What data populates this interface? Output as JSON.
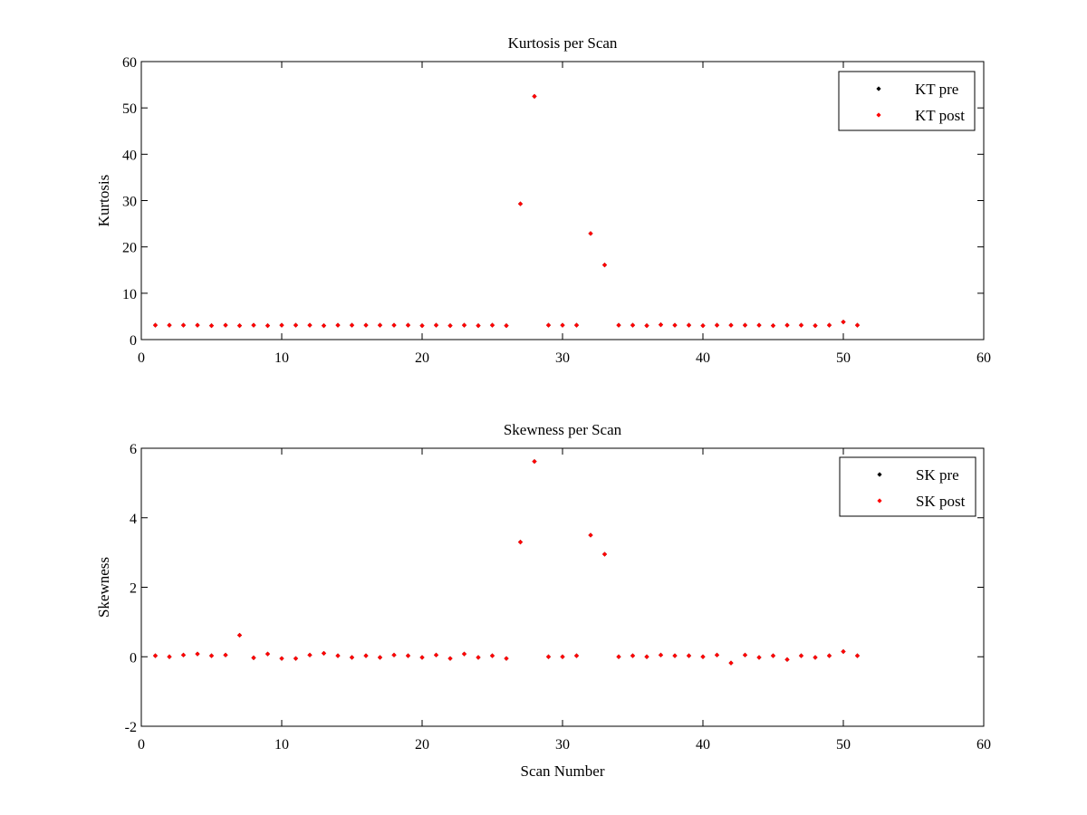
{
  "colors": {
    "pre": "#000000",
    "post": "#ff0000",
    "axes": "#000000",
    "background": "#ffffff"
  },
  "chart_data": [
    {
      "type": "scatter",
      "title": "Kurtosis per Scan",
      "xlabel": "",
      "ylabel": "Kurtosis",
      "xlim": [
        0,
        60
      ],
      "ylim": [
        0,
        60
      ],
      "xticks": [
        0,
        10,
        20,
        30,
        40,
        50,
        60
      ],
      "yticks": [
        0,
        10,
        20,
        30,
        40,
        50,
        60
      ],
      "grid": false,
      "legend_position": "top-right",
      "series": [
        {
          "name": "KT pre",
          "color": "#000000",
          "x": [
            1,
            2,
            3,
            4,
            5,
            6,
            7,
            8,
            9,
            10,
            11,
            12,
            13,
            14,
            15,
            16,
            17,
            18,
            19,
            20,
            21,
            22,
            23,
            24,
            25,
            26,
            27,
            28,
            29,
            30,
            31,
            32,
            33,
            34,
            35,
            36,
            37,
            38,
            39,
            40,
            41,
            42,
            43,
            44,
            45,
            46,
            47,
            48,
            49,
            50,
            51
          ],
          "y": [
            3.1,
            3.1,
            3.1,
            3.1,
            3.0,
            3.1,
            3.0,
            3.1,
            3.0,
            3.1,
            3.1,
            3.1,
            3.0,
            3.1,
            3.1,
            3.1,
            3.1,
            3.1,
            3.1,
            3.0,
            3.1,
            3.0,
            3.1,
            3.0,
            3.1,
            3.0,
            29.3,
            52.5,
            3.1,
            3.1,
            3.1,
            22.9,
            16.1,
            3.1,
            3.1,
            3.0,
            3.2,
            3.1,
            3.1,
            3.0,
            3.1,
            3.1,
            3.1,
            3.1,
            3.0,
            3.1,
            3.1,
            3.0,
            3.1,
            3.8,
            3.1
          ]
        },
        {
          "name": "KT post",
          "color": "#ff0000",
          "x": [
            1,
            2,
            3,
            4,
            5,
            6,
            7,
            8,
            9,
            10,
            11,
            12,
            13,
            14,
            15,
            16,
            17,
            18,
            19,
            20,
            21,
            22,
            23,
            24,
            25,
            26,
            27,
            28,
            29,
            30,
            31,
            32,
            33,
            34,
            35,
            36,
            37,
            38,
            39,
            40,
            41,
            42,
            43,
            44,
            45,
            46,
            47,
            48,
            49,
            50,
            51
          ],
          "y": [
            3.1,
            3.1,
            3.1,
            3.1,
            3.0,
            3.1,
            3.0,
            3.1,
            3.0,
            3.1,
            3.1,
            3.1,
            3.0,
            3.1,
            3.1,
            3.1,
            3.1,
            3.1,
            3.1,
            3.0,
            3.1,
            3.0,
            3.1,
            3.0,
            3.1,
            3.0,
            29.3,
            52.5,
            3.1,
            3.1,
            3.1,
            22.9,
            16.1,
            3.1,
            3.1,
            3.0,
            3.2,
            3.1,
            3.1,
            3.0,
            3.1,
            3.1,
            3.1,
            3.1,
            3.0,
            3.1,
            3.1,
            3.0,
            3.1,
            3.8,
            3.1
          ]
        }
      ]
    },
    {
      "type": "scatter",
      "title": "Skewness per Scan",
      "xlabel": "Scan Number",
      "ylabel": "Skewness",
      "xlim": [
        0,
        60
      ],
      "ylim": [
        -2,
        6
      ],
      "xticks": [
        0,
        10,
        20,
        30,
        40,
        50,
        60
      ],
      "yticks": [
        -2,
        0,
        2,
        4,
        6
      ],
      "grid": false,
      "legend_position": "top-right",
      "series": [
        {
          "name": "SK pre",
          "color": "#000000",
          "x": [
            1,
            2,
            3,
            4,
            5,
            6,
            7,
            8,
            9,
            10,
            11,
            12,
            13,
            14,
            15,
            16,
            17,
            18,
            19,
            20,
            21,
            22,
            23,
            24,
            25,
            26,
            27,
            28,
            29,
            30,
            31,
            32,
            33,
            34,
            35,
            36,
            37,
            38,
            39,
            40,
            41,
            42,
            43,
            44,
            45,
            46,
            47,
            48,
            49,
            50,
            51
          ],
          "y": [
            0.03,
            0.0,
            0.05,
            0.08,
            0.03,
            0.05,
            0.62,
            -0.03,
            0.08,
            -0.05,
            -0.05,
            0.05,
            0.1,
            0.03,
            -0.02,
            0.03,
            -0.02,
            0.05,
            0.03,
            -0.02,
            0.05,
            -0.05,
            0.08,
            -0.02,
            0.03,
            -0.05,
            3.3,
            5.62,
            0.0,
            0.0,
            0.03,
            3.5,
            2.95,
            0.0,
            0.03,
            0.0,
            0.05,
            0.03,
            0.03,
            0.0,
            0.05,
            -0.18,
            0.05,
            -0.02,
            0.03,
            -0.08,
            0.03,
            -0.02,
            0.03,
            0.15,
            0.03
          ]
        },
        {
          "name": "SK post",
          "color": "#ff0000",
          "x": [
            1,
            2,
            3,
            4,
            5,
            6,
            7,
            8,
            9,
            10,
            11,
            12,
            13,
            14,
            15,
            16,
            17,
            18,
            19,
            20,
            21,
            22,
            23,
            24,
            25,
            26,
            27,
            28,
            29,
            30,
            31,
            32,
            33,
            34,
            35,
            36,
            37,
            38,
            39,
            40,
            41,
            42,
            43,
            44,
            45,
            46,
            47,
            48,
            49,
            50,
            51
          ],
          "y": [
            0.03,
            0.0,
            0.05,
            0.08,
            0.03,
            0.05,
            0.62,
            -0.03,
            0.08,
            -0.05,
            -0.05,
            0.05,
            0.1,
            0.03,
            -0.02,
            0.03,
            -0.02,
            0.05,
            0.03,
            -0.02,
            0.05,
            -0.05,
            0.08,
            -0.02,
            0.03,
            -0.05,
            3.3,
            5.62,
            0.0,
            0.0,
            0.03,
            3.5,
            2.95,
            0.0,
            0.03,
            0.0,
            0.05,
            0.03,
            0.03,
            0.0,
            0.05,
            -0.18,
            0.05,
            -0.02,
            0.03,
            -0.08,
            0.03,
            -0.02,
            0.03,
            0.15,
            0.03
          ]
        }
      ]
    }
  ]
}
